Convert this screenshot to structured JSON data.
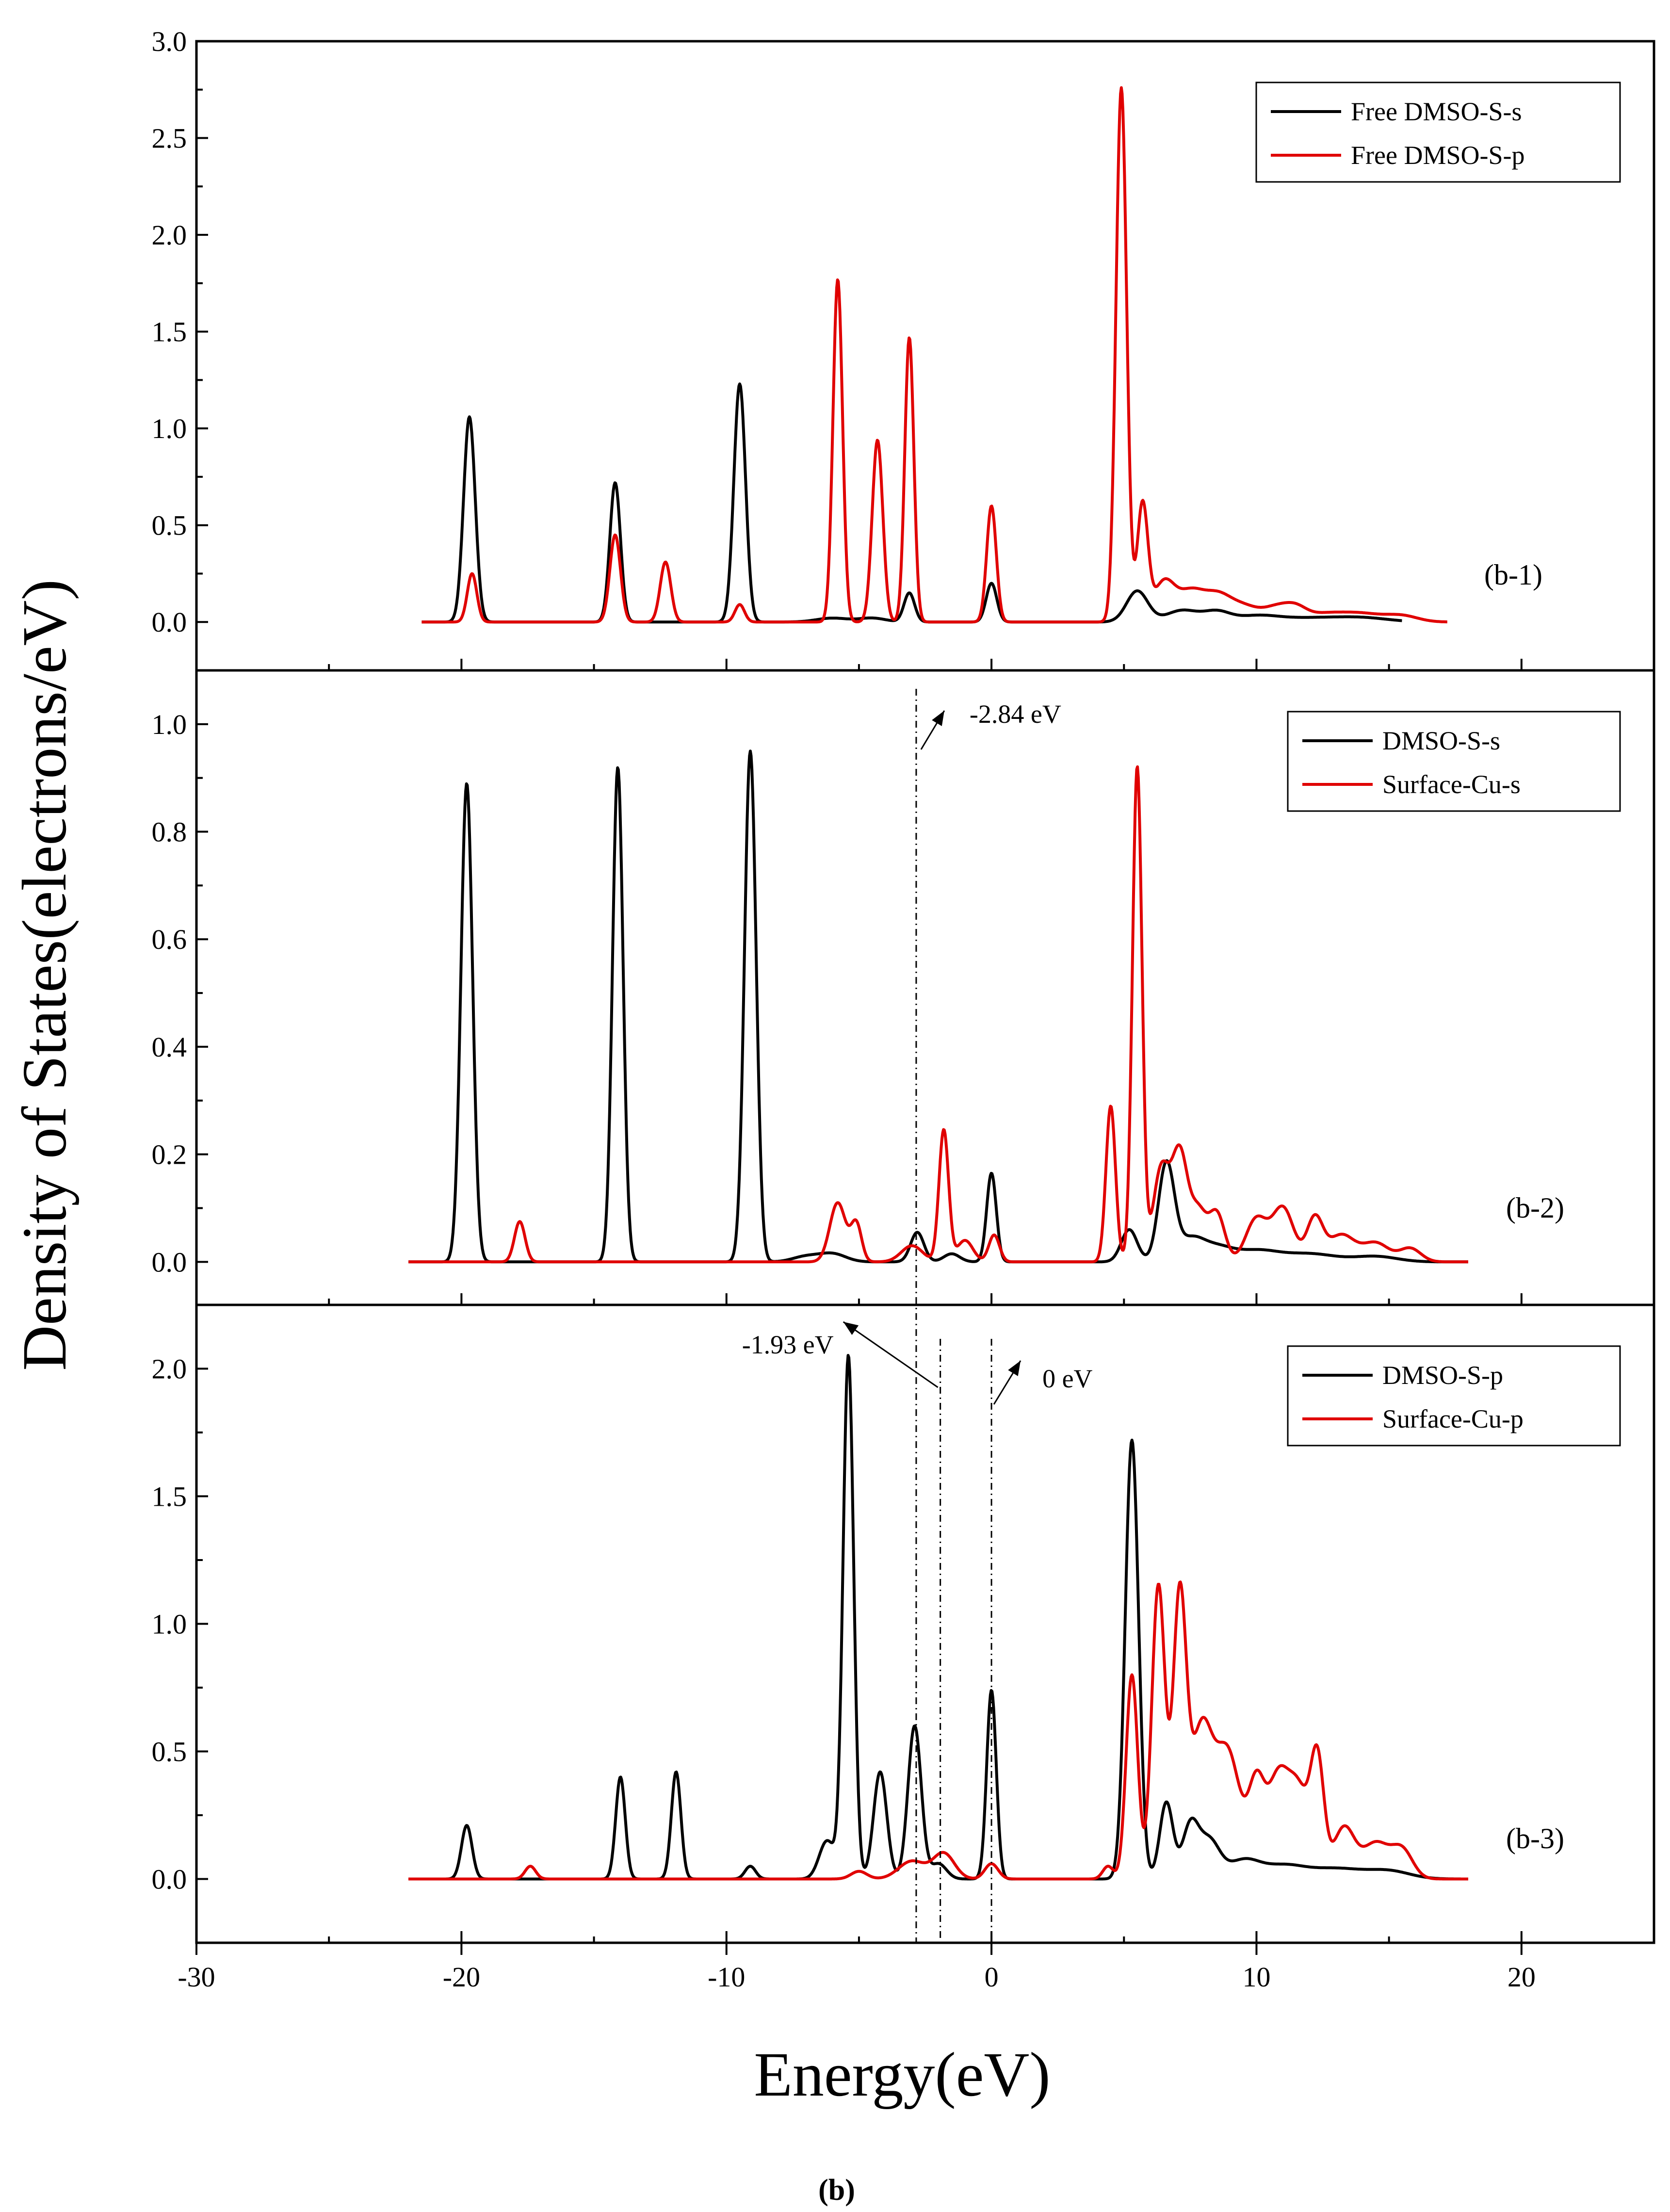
{
  "figure_caption": {
    "open": "(",
    "label": "b",
    "close": ")"
  },
  "chart_data": {
    "type": "line",
    "title": "",
    "xlabel": "Energy(eV)",
    "ylabel": "Density of States(electrons/eV)",
    "xlim": [
      -30,
      25
    ],
    "xticks": [
      -30,
      -20,
      -10,
      0,
      10,
      20
    ],
    "xtick_labels": [
      "-30",
      "-20",
      "-10",
      "0",
      "10",
      "20"
    ],
    "panels": [
      {
        "tag": "(b-1)",
        "ylim": [
          -0.25,
          3.0
        ],
        "yticks": [
          0.0,
          0.5,
          1.0,
          1.5,
          2.0,
          2.5,
          3.0
        ],
        "ytick_labels": [
          "0.0",
          "0.5",
          "1.0",
          "1.5",
          "2.0",
          "2.5",
          "3.0"
        ],
        "legend_position": "top-right",
        "series": [
          {
            "name": "Free DMSO-S-s",
            "color": "#000000",
            "x_range": [
              -21.5,
              15.5
            ],
            "peaks": [
              [
                -19.7,
                1.06,
                0.22
              ],
              [
                -14.2,
                0.72,
                0.2
              ],
              [
                -9.5,
                1.23,
                0.22
              ],
              [
                -6.0,
                0.02,
                0.6
              ],
              [
                -4.5,
                0.02,
                0.5
              ],
              [
                -3.1,
                0.15,
                0.2
              ],
              [
                0.0,
                0.2,
                0.2
              ],
              [
                5.5,
                0.16,
                0.4
              ],
              [
                7.2,
                0.06,
                0.6
              ],
              [
                8.5,
                0.05,
                0.5
              ],
              [
                10.0,
                0.03,
                0.8
              ],
              [
                12.0,
                0.02,
                1.2
              ],
              [
                14.0,
                0.02,
                1.0
              ]
            ]
          },
          {
            "name": "Free DMSO-S-p",
            "color": "#e00000",
            "x_range": [
              -21.5,
              17.2
            ],
            "peaks": [
              [
                -19.6,
                0.25,
                0.18
              ],
              [
                -14.2,
                0.45,
                0.2
              ],
              [
                -12.3,
                0.31,
                0.2
              ],
              [
                -9.5,
                0.09,
                0.18
              ],
              [
                -5.8,
                1.77,
                0.18
              ],
              [
                -4.3,
                0.94,
                0.2
              ],
              [
                -3.1,
                1.47,
                0.17
              ],
              [
                0.0,
                0.6,
                0.18
              ],
              [
                4.9,
                2.76,
                0.2
              ],
              [
                5.7,
                0.6,
                0.2
              ],
              [
                6.5,
                0.2,
                0.4
              ],
              [
                7.5,
                0.15,
                0.5
              ],
              [
                8.5,
                0.12,
                0.5
              ],
              [
                9.5,
                0.08,
                0.6
              ],
              [
                10.8,
                0.07,
                0.5
              ],
              [
                11.5,
                0.05,
                0.4
              ],
              [
                12.5,
                0.04,
                0.8
              ],
              [
                14.0,
                0.04,
                0.8
              ],
              [
                15.5,
                0.03,
                0.6
              ]
            ]
          }
        ]
      },
      {
        "tag": "(b-2)",
        "ylim": [
          -0.08,
          1.1
        ],
        "yticks": [
          0.0,
          0.2,
          0.4,
          0.6,
          0.8,
          1.0
        ],
        "ytick_labels": [
          "0.0",
          "0.2",
          "0.4",
          "0.6",
          "0.8",
          "1.0"
        ],
        "legend_position": "top-right",
        "annotations": [
          {
            "text": "-2.84 eV",
            "x": -2.84
          }
        ],
        "series": [
          {
            "name": "DMSO-S-s",
            "color": "#000000",
            "x_range": [
              -22,
              18
            ],
            "peaks": [
              [
                -19.8,
                0.89,
                0.22
              ],
              [
                -14.1,
                0.92,
                0.2
              ],
              [
                -9.1,
                0.95,
                0.22
              ],
              [
                -7.0,
                0.01,
                0.5
              ],
              [
                -6.0,
                0.015,
                0.5
              ],
              [
                -2.8,
                0.055,
                0.25
              ],
              [
                -1.5,
                0.015,
                0.3
              ],
              [
                0.0,
                0.165,
                0.18
              ],
              [
                5.2,
                0.06,
                0.3
              ],
              [
                6.6,
                0.18,
                0.3
              ],
              [
                7.5,
                0.04,
                0.5
              ],
              [
                8.5,
                0.025,
                0.6
              ],
              [
                10.0,
                0.02,
                0.8
              ],
              [
                12.0,
                0.015,
                1.0
              ],
              [
                14.5,
                0.01,
                0.8
              ]
            ]
          },
          {
            "name": "Surface-Cu-s",
            "color": "#e00000",
            "x_range": [
              -22,
              18
            ],
            "peaks": [
              [
                -17.8,
                0.075,
                0.2
              ],
              [
                -5.8,
                0.11,
                0.3
              ],
              [
                -5.1,
                0.07,
                0.2
              ],
              [
                -3.0,
                0.03,
                0.4
              ],
              [
                -1.8,
                0.245,
                0.18
              ],
              [
                -1.0,
                0.04,
                0.3
              ],
              [
                0.1,
                0.05,
                0.2
              ],
              [
                4.5,
                0.29,
                0.18
              ],
              [
                5.5,
                0.92,
                0.18
              ],
              [
                6.4,
                0.17,
                0.3
              ],
              [
                7.1,
                0.2,
                0.3
              ],
              [
                7.8,
                0.09,
                0.3
              ],
              [
                8.5,
                0.09,
                0.3
              ],
              [
                10.0,
                0.08,
                0.4
              ],
              [
                11.0,
                0.1,
                0.4
              ],
              [
                12.2,
                0.08,
                0.3
              ],
              [
                13.2,
                0.05,
                0.5
              ],
              [
                14.5,
                0.035,
                0.5
              ],
              [
                15.8,
                0.025,
                0.4
              ]
            ]
          }
        ]
      },
      {
        "tag": "(b-3)",
        "ylim": [
          -0.25,
          2.25
        ],
        "yticks": [
          0.0,
          0.5,
          1.0,
          1.5,
          2.0
        ],
        "ytick_labels": [
          "0.0",
          "0.5",
          "1.0",
          "1.5",
          "2.0"
        ],
        "legend_position": "top-right",
        "annotations": [
          {
            "text": "-1.93 eV",
            "x": -1.93
          },
          {
            "text": "0 eV",
            "x": 0
          }
        ],
        "series": [
          {
            "name": "DMSO-S-p",
            "color": "#000000",
            "x_range": [
              -22,
              18
            ],
            "peaks": [
              [
                -19.8,
                0.21,
                0.2
              ],
              [
                -14.0,
                0.4,
                0.18
              ],
              [
                -11.9,
                0.42,
                0.18
              ],
              [
                -9.1,
                0.05,
                0.2
              ],
              [
                -6.2,
                0.15,
                0.3
              ],
              [
                -5.4,
                2.05,
                0.2
              ],
              [
                -4.2,
                0.42,
                0.25
              ],
              [
                -2.9,
                0.6,
                0.25
              ],
              [
                -2.0,
                0.06,
                0.3
              ],
              [
                0.0,
                0.74,
                0.18
              ],
              [
                5.3,
                1.72,
                0.25
              ],
              [
                6.6,
                0.3,
                0.25
              ],
              [
                7.5,
                0.2,
                0.3
              ],
              [
                8.2,
                0.15,
                0.4
              ],
              [
                9.5,
                0.07,
                0.6
              ],
              [
                11.0,
                0.05,
                0.8
              ],
              [
                13.0,
                0.04,
                1.0
              ],
              [
                15.0,
                0.03,
                0.8
              ]
            ]
          },
          {
            "name": "Surface-Cu-p",
            "color": "#e00000",
            "x_range": [
              -22,
              18
            ],
            "peaks": [
              [
                -17.4,
                0.05,
                0.2
              ],
              [
                -5.0,
                0.03,
                0.3
              ],
              [
                -3.0,
                0.07,
                0.5
              ],
              [
                -1.8,
                0.1,
                0.4
              ],
              [
                0.0,
                0.06,
                0.25
              ],
              [
                4.4,
                0.05,
                0.2
              ],
              [
                5.3,
                0.8,
                0.22
              ],
              [
                6.3,
                1.15,
                0.25
              ],
              [
                7.1,
                1.08,
                0.25
              ],
              [
                7.9,
                0.55,
                0.4
              ],
              [
                8.9,
                0.5,
                0.5
              ],
              [
                10.0,
                0.33,
                0.3
              ],
              [
                10.8,
                0.38,
                0.4
              ],
              [
                11.6,
                0.33,
                0.4
              ],
              [
                12.3,
                0.44,
                0.25
              ],
              [
                13.3,
                0.2,
                0.4
              ],
              [
                14.5,
                0.14,
                0.5
              ],
              [
                15.5,
                0.11,
                0.4
              ]
            ]
          }
        ]
      }
    ]
  }
}
